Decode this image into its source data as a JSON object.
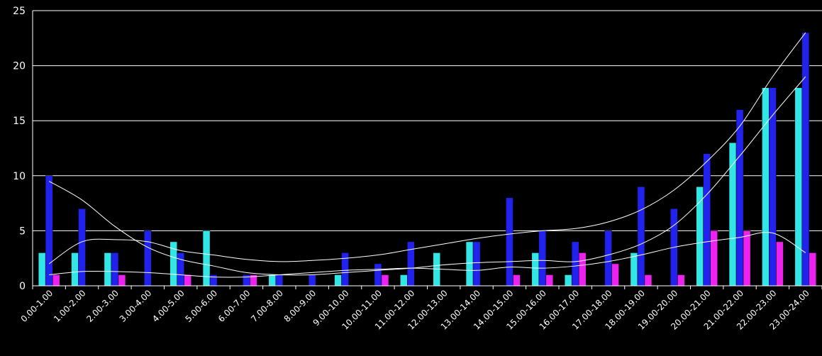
{
  "chart_data": {
    "type": "bar",
    "title": "",
    "xlabel": "",
    "ylabel": "",
    "ylim": [
      0,
      25
    ],
    "yticks": [
      0,
      5,
      10,
      15,
      20,
      25
    ],
    "grid": true,
    "legend": "none",
    "background": "#000000",
    "gridline_color": "#ffffff",
    "trendline_color": "#ffffff",
    "categories": [
      "0.00-1.00",
      "1.00-2.00",
      "2.00-3.00",
      "3.00-4.00",
      "4.00-5.00",
      "5.00-6.00",
      "6.00-7.00",
      "7.00-8.00",
      "8.00-9.00",
      "9.00-10.00",
      "10.00-11.00",
      "11.00-12.00",
      "12.00-13.00",
      "13.00-14.00",
      "14.00-15.00",
      "15.00-16.00",
      "16.00-17.00",
      "17.00-18.00",
      "18.00-19.00",
      "19.00-20.00",
      "20.00-21.00",
      "21.00-22.00",
      "22.00-23.00",
      "23.00-24.00"
    ],
    "series": [
      {
        "color": "#33e6e6",
        "values": [
          3,
          3,
          3,
          0,
          4,
          5,
          0,
          1,
          0,
          1,
          0,
          1,
          3,
          4,
          0,
          3,
          1,
          0,
          3,
          0,
          9,
          13,
          18,
          18
        ]
      },
      {
        "color": "#2222ee",
        "values": [
          10,
          7,
          3,
          5,
          3,
          1,
          1,
          1,
          1,
          3,
          2,
          4,
          0,
          4,
          8,
          5,
          4,
          5,
          9,
          7,
          12,
          16,
          18,
          23
        ]
      },
      {
        "color": "#ee22ee",
        "values": [
          1,
          0,
          1,
          0,
          1,
          0,
          1,
          0,
          0,
          0,
          1,
          0,
          0,
          0,
          1,
          1,
          3,
          2,
          1,
          1,
          5,
          5,
          4,
          3
        ]
      }
    ],
    "trendlines": [
      {
        "values": [
          2.0,
          4.0,
          4.2,
          4.0,
          3.2,
          2.8,
          2.4,
          2.2,
          2.3,
          2.5,
          2.8,
          3.3,
          3.8,
          4.3,
          4.7,
          5.0,
          5.2,
          5.8,
          6.9,
          8.7,
          11.3,
          14.5,
          19.0,
          23.0
        ]
      },
      {
        "values": [
          1.0,
          1.3,
          1.3,
          1.2,
          1.0,
          0.8,
          0.8,
          1.0,
          1.2,
          1.4,
          1.5,
          1.6,
          1.5,
          1.4,
          1.7,
          1.6,
          1.8,
          2.2,
          2.8,
          3.5,
          4.0,
          4.4,
          4.8,
          3.0
        ]
      },
      {
        "values": [
          9.5,
          7.8,
          5.4,
          3.5,
          2.4,
          1.8,
          1.2,
          1.0,
          1.0,
          1.2,
          1.4,
          1.6,
          1.9,
          2.1,
          2.2,
          2.3,
          2.2,
          2.8,
          3.8,
          5.5,
          8.3,
          11.8,
          15.5,
          19.0
        ]
      }
    ]
  }
}
